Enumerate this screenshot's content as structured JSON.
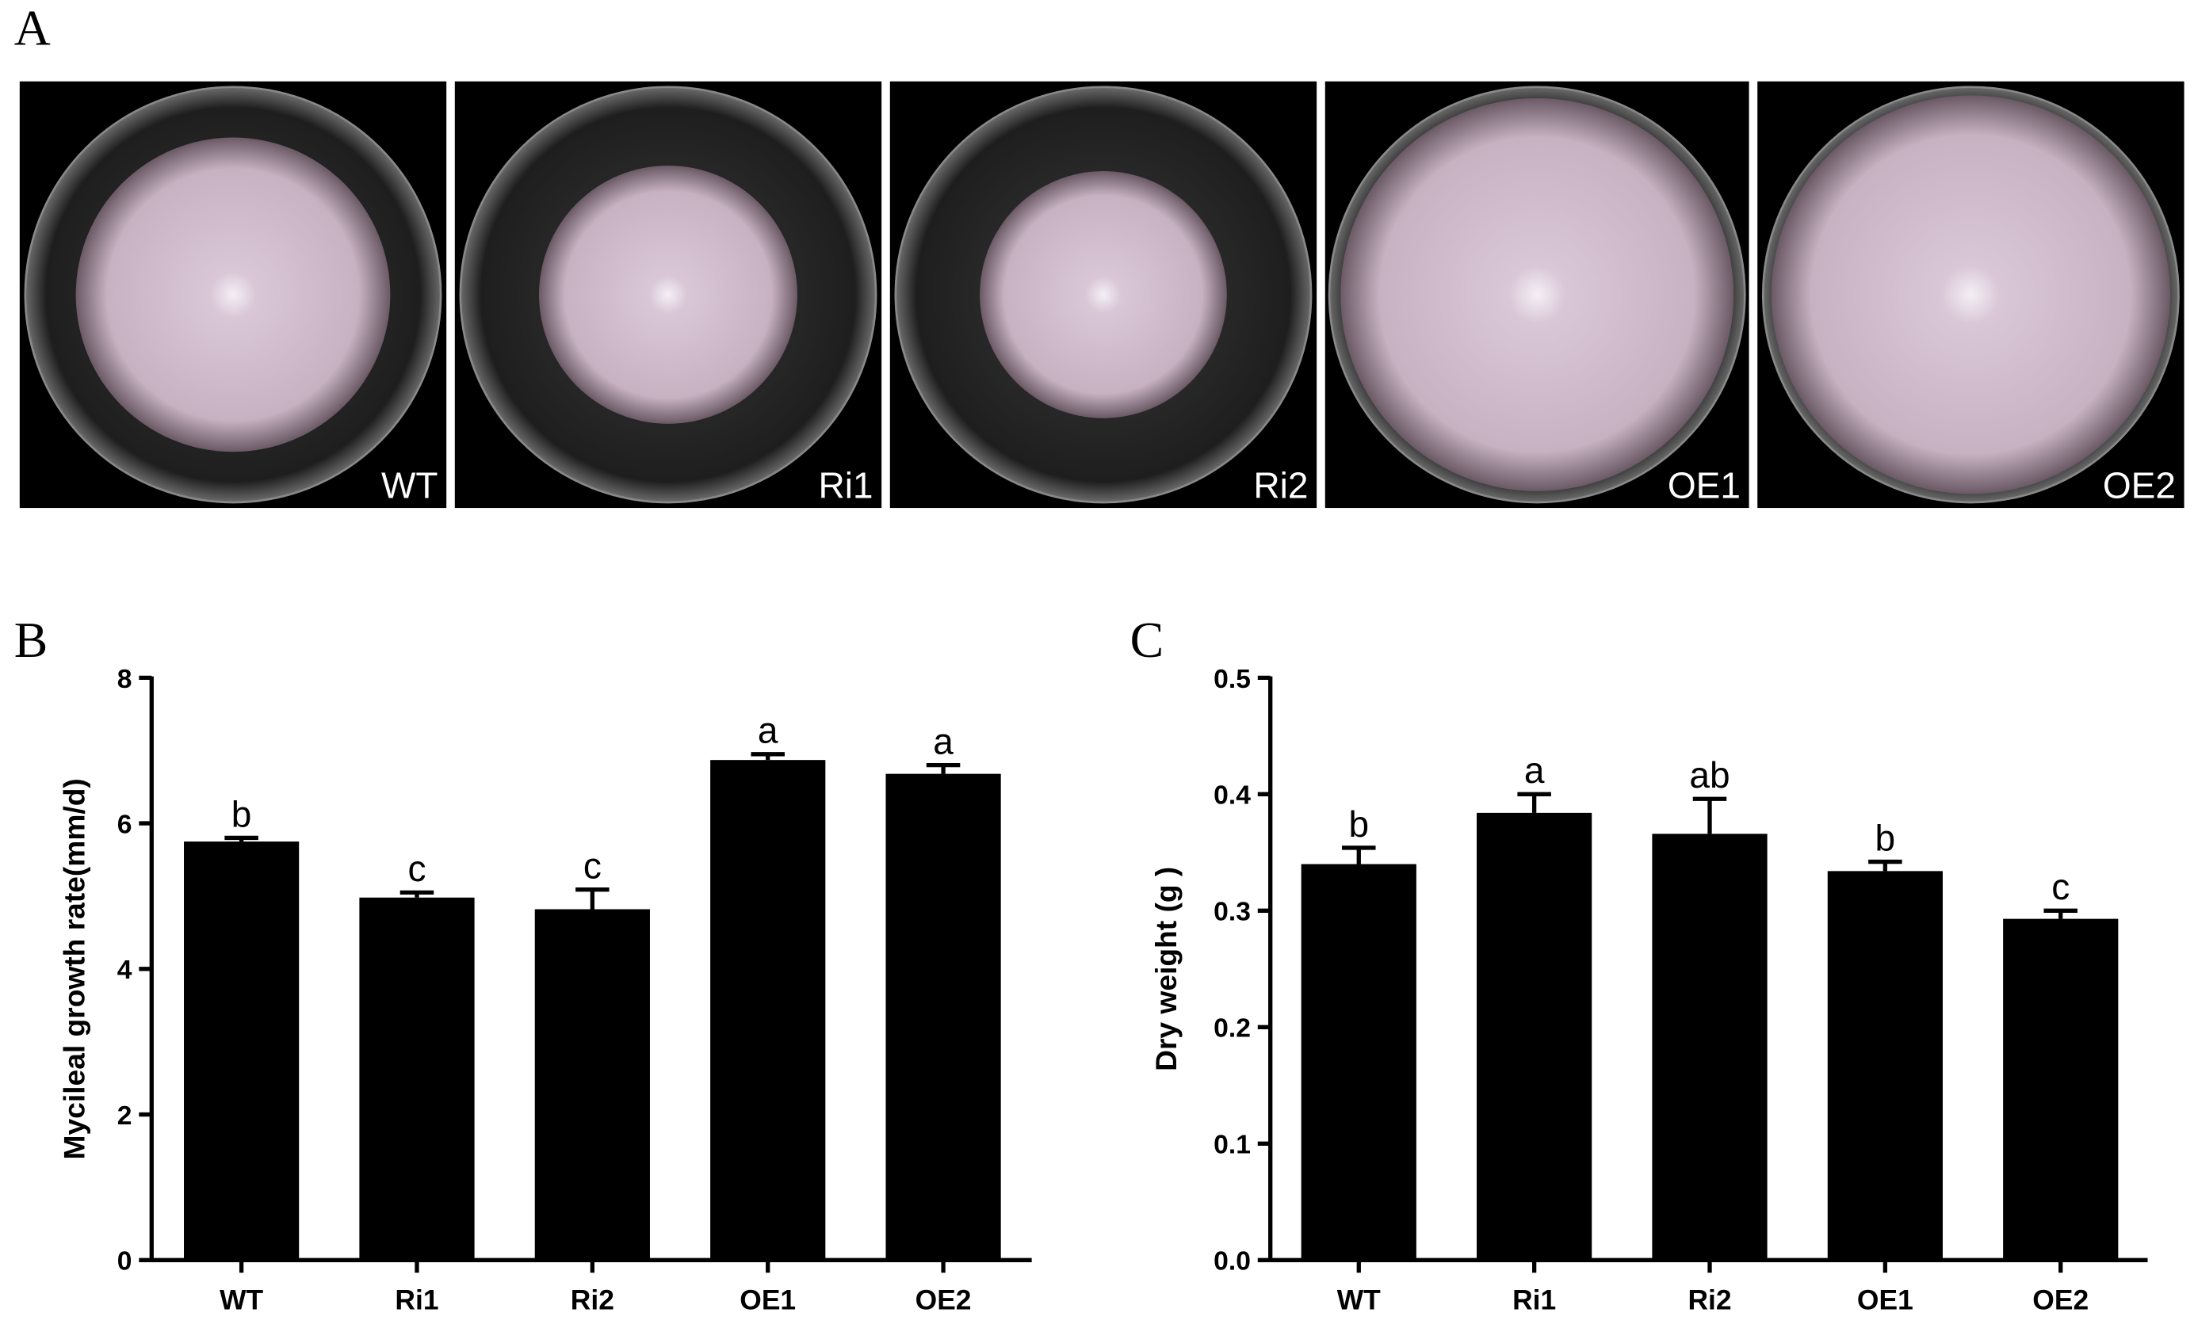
{
  "panel_a": {
    "panel_label": "A",
    "plates": [
      "WT",
      "Ri1",
      "Ri2",
      "OE1",
      "OE2"
    ]
  },
  "chart_data": [
    {
      "type": "bar",
      "panel_label": "B",
      "y_label": "Mycileal growth rate(mm/d)",
      "categories": [
        "WT",
        "Ri1",
        "Ri2",
        "OE1",
        "OE2"
      ],
      "values": [
        5.75,
        4.98,
        4.82,
        6.87,
        6.68
      ],
      "errors": [
        0.05,
        0.07,
        0.27,
        0.08,
        0.12
      ],
      "annotations": [
        "b",
        "c",
        "c",
        "a",
        "a"
      ],
      "color": "#000000",
      "ylim": [
        0,
        8
      ],
      "yticks": [
        0,
        2,
        4,
        6,
        8
      ]
    },
    {
      "type": "bar",
      "panel_label": "C",
      "y_label": "Dry weight (g )",
      "categories": [
        "WT",
        "Ri1",
        "Ri2",
        "OE1",
        "OE2"
      ],
      "values": [
        0.34,
        0.384,
        0.366,
        0.334,
        0.293
      ],
      "errors": [
        0.014,
        0.016,
        0.03,
        0.008,
        0.007
      ],
      "annotations": [
        "b",
        "a",
        "ab",
        "b",
        "c"
      ],
      "color": "#000000",
      "ylim": [
        0,
        0.5
      ],
      "yticks": [
        {
          "value": 0,
          "label": "0.0"
        },
        0.1,
        0.2,
        0.3,
        0.4,
        0.5
      ]
    }
  ]
}
